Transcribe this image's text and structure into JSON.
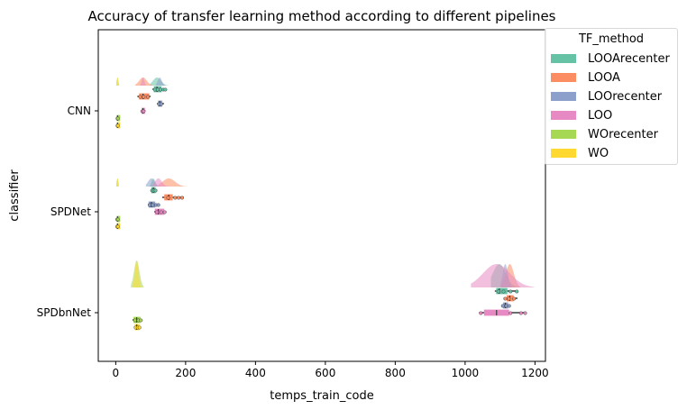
{
  "chart_data": {
    "type": "raincloud",
    "title": "Accuracy of transfer learning method according to different pipelines",
    "xlabel": "temps_train_code",
    "ylabel": "classifier",
    "xlim": [
      -50,
      1230
    ],
    "xticks": [
      "0",
      "200",
      "400",
      "600",
      "800",
      "1000",
      "1200"
    ],
    "xtick_values": [
      0,
      200,
      400,
      600,
      800,
      1000,
      1200
    ],
    "categories": [
      "CNN",
      "SPDNet",
      "SPDbnNet"
    ],
    "legend": {
      "title": "TF_method",
      "position": "upper right, outside axes"
    },
    "series": [
      {
        "name": "LOOArecenter",
        "color": "#66c2a5",
        "boxes": [
          {
            "q1": 110,
            "med": 118,
            "q3": 130,
            "lo": 105,
            "hi": 145,
            "pts": [
              112,
              120,
              128,
              136,
              142
            ]
          },
          {
            "q1": 103,
            "med": 108,
            "q3": 113,
            "lo": 100,
            "hi": 118,
            "pts": [
              104,
              109,
              114
            ]
          },
          {
            "q1": 1090,
            "med": 1098,
            "q3": 1120,
            "lo": 1085,
            "hi": 1150,
            "pts": [
              1095,
              1110,
              1130,
              1148
            ]
          }
        ]
      },
      {
        "name": "LOOA",
        "color": "#fc8d62",
        "boxes": [
          {
            "q1": 68,
            "med": 78,
            "q3": 95,
            "lo": 62,
            "hi": 100,
            "pts": [
              70,
              80,
              92
            ]
          },
          {
            "q1": 140,
            "med": 152,
            "q3": 162,
            "lo": 133,
            "hi": 195,
            "pts": [
              150,
              170,
              180,
              190
            ]
          },
          {
            "q1": 1120,
            "med": 1128,
            "q3": 1138,
            "lo": 1110,
            "hi": 1150,
            "pts": [
              1115,
              1125,
              1140
            ]
          }
        ]
      },
      {
        "name": "LOOrecenter",
        "color": "#8da0cb",
        "boxes": [
          {
            "q1": 122,
            "med": 126,
            "q3": 132,
            "lo": 118,
            "hi": 138,
            "pts": [
              124,
              130
            ]
          },
          {
            "q1": 95,
            "med": 102,
            "q3": 112,
            "lo": 92,
            "hi": 125,
            "pts": [
              97,
              106,
              115,
              122
            ]
          },
          {
            "q1": 1110,
            "med": 1115,
            "q3": 1122,
            "lo": 1105,
            "hi": 1130,
            "pts": [
              1108,
              1118,
              1126
            ]
          }
        ]
      },
      {
        "name": "LOO",
        "color": "#e78ac3",
        "boxes": [
          {
            "q1": 75,
            "med": 78,
            "q3": 82,
            "lo": 72,
            "hi": 85,
            "pts": [
              76,
              80
            ]
          },
          {
            "q1": 113,
            "med": 122,
            "q3": 138,
            "lo": 110,
            "hi": 145,
            "pts": [
              118,
              130,
              140
            ]
          },
          {
            "q1": 1055,
            "med": 1090,
            "q3": 1125,
            "lo": 1040,
            "hi": 1175,
            "pts": [
              1045,
              1130,
              1160,
              1172
            ]
          }
        ]
      },
      {
        "name": "WOrecenter",
        "color": "#a6d854",
        "boxes": [
          {
            "q1": 4,
            "med": 5,
            "q3": 7,
            "lo": 3,
            "hi": 8,
            "pts": [
              5,
              6
            ]
          },
          {
            "q1": 4,
            "med": 5,
            "q3": 6,
            "lo": 3,
            "hi": 7,
            "pts": [
              4,
              6
            ]
          },
          {
            "q1": 52,
            "med": 60,
            "q3": 70,
            "lo": 48,
            "hi": 75,
            "pts": [
              55,
              65,
              72
            ]
          }
        ]
      },
      {
        "name": "WO",
        "color": "#ffd92f",
        "boxes": [
          {
            "q1": 4,
            "med": 5,
            "q3": 7,
            "lo": 3,
            "hi": 8,
            "pts": [
              5,
              6
            ]
          },
          {
            "q1": 4,
            "med": 5,
            "q3": 6,
            "lo": 3,
            "hi": 7,
            "pts": [
              4,
              6
            ]
          },
          {
            "q1": 55,
            "med": 60,
            "q3": 67,
            "lo": 52,
            "hi": 70,
            "pts": [
              57,
              63,
              68
            ]
          }
        ]
      }
    ]
  }
}
